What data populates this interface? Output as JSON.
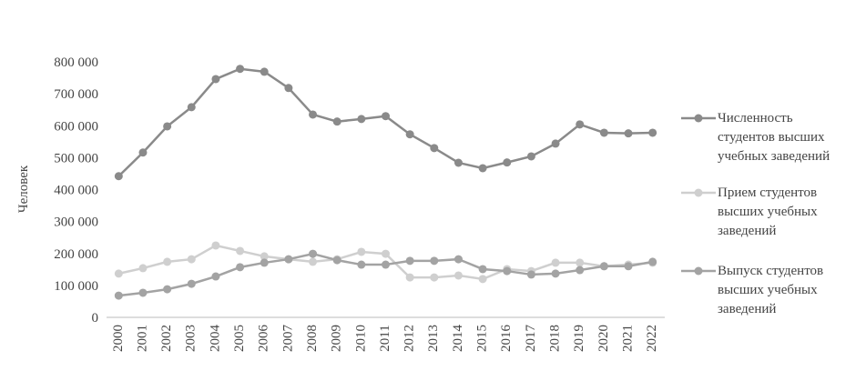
{
  "chart_data": {
    "type": "line",
    "y_label": "Человек",
    "x": [
      "2000",
      "2001",
      "2002",
      "2003",
      "2004",
      "2005",
      "2006",
      "2007",
      "2008",
      "2009",
      "2010",
      "2011",
      "2012",
      "2013",
      "2014",
      "2015",
      "2016",
      "2017",
      "2018",
      "2019",
      "2020",
      "2021",
      "2022"
    ],
    "ylim": [
      0,
      800000
    ],
    "yticks": [
      0,
      {
        "value": 100000,
        "label": "100 000"
      },
      {
        "value": 200000,
        "label": "200 000"
      },
      {
        "value": 300000,
        "label": "300 000"
      },
      {
        "value": 400000,
        "label": "400 000"
      },
      {
        "value": 500000,
        "label": "500 000"
      },
      {
        "value": 600000,
        "label": "600 000"
      },
      {
        "value": 700000,
        "label": "700 000"
      },
      {
        "value": 800000,
        "label": "800 000"
      }
    ],
    "legend": "right",
    "series": [
      {
        "name": "Численность студентов высших учебных заведений",
        "color": "#8a8a8a",
        "values": [
          442000,
          516000,
          598000,
          658000,
          746000,
          778000,
          769000,
          718000,
          635000,
          613000,
          621000,
          630000,
          573000,
          530000,
          484000,
          467000,
          485000,
          504000,
          544000,
          604000,
          578000,
          576000,
          578000
        ]
      },
      {
        "name": "Прием студентов высших учебных заведений",
        "color": "#cfcfcf",
        "values": [
          137000,
          154000,
          174000,
          182000,
          225000,
          208000,
          191000,
          182000,
          174000,
          182000,
          205000,
          199000,
          125000,
          125000,
          131000,
          120000,
          151000,
          145000,
          171000,
          171000,
          160000,
          165000,
          171000
        ]
      },
      {
        "name": "Выпуск студентов высших учебных заведений",
        "color": "#a3a3a3",
        "values": [
          68000,
          77000,
          88000,
          105000,
          128000,
          157000,
          171000,
          182000,
          199000,
          179000,
          165000,
          165000,
          177000,
          177000,
          182000,
          151000,
          145000,
          134000,
          137000,
          148000,
          160000,
          160000,
          174000
        ]
      }
    ]
  }
}
